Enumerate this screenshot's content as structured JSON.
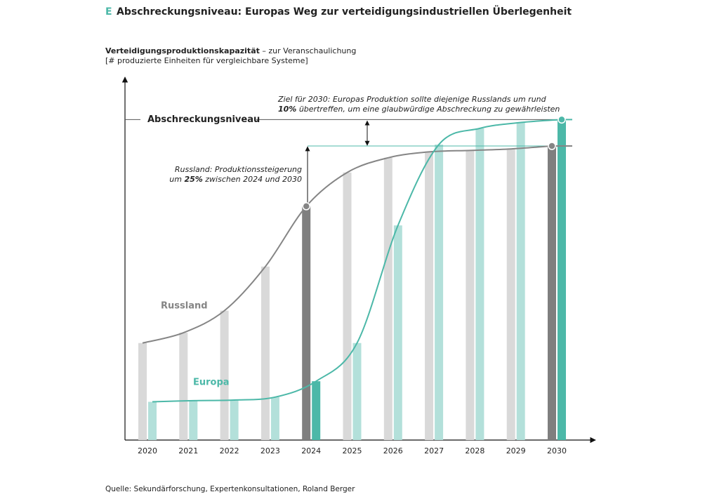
{
  "chart_data": {
    "type": "bar-line",
    "title_marker": "E",
    "title": "Abschreckungsniveau: Europas Weg zur verteidigungsindustriellen Überlegenheit",
    "subtitle_bold": "Verteidigungsproduktionskapazität",
    "subtitle": " – zur Veranschaulichung",
    "subtitle_line2": "[# produzierte Einheiten für vergleichbare Systeme]",
    "categories": [
      "2020",
      "2021",
      "2022",
      "2023",
      "2024",
      "2025",
      "2026",
      "2027",
      "2028",
      "2029",
      "2030"
    ],
    "highlight_indices": [
      4,
      10
    ],
    "series": [
      {
        "name": "Russland",
        "color": "#d9d9d9",
        "highlight_color": "#7f7f7f",
        "line_color": "#858585",
        "values": [
          33,
          36.5,
          44,
          59,
          79.5,
          91,
          96,
          98,
          98.5,
          99,
          100
        ]
      },
      {
        "name": "Europa",
        "color": "#b3e0da",
        "highlight_color": "#4cb8a8",
        "line_color": "#4cb8a8",
        "values": [
          13,
          13.4,
          13.6,
          14.6,
          20,
          33,
          73,
          100.5,
          106,
          108,
          109
        ]
      }
    ],
    "ylim": [
      0,
      123.4
    ],
    "reference_label": "Abschreckungsniveau",
    "annotation_goal": [
      "Ziel für 2030: Europas Produktion sollte diejenige Russlands um rund",
      "10%",
      " übertreffen, um eine glaubwürdige Abschreckung zu gewährleisten"
    ],
    "annotation_russia": [
      "Russland: Produktionssteigerung",
      "um ",
      "25%",
      " zwischen 2024 und 2030"
    ],
    "source": "Quelle: Sekundärforschung, Expertenkonsultationen, Roland Berger"
  }
}
